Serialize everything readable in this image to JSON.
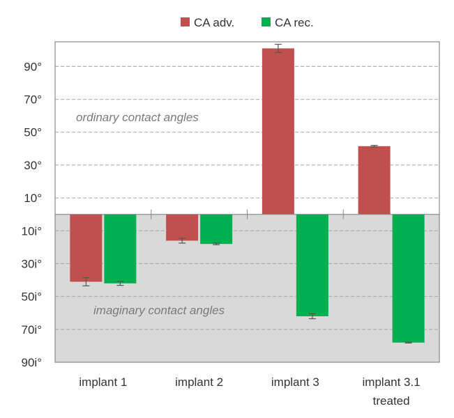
{
  "chart_data": {
    "type": "bar",
    "categories": [
      {
        "lines": [
          "implant 1"
        ]
      },
      {
        "lines": [
          "implant 2"
        ]
      },
      {
        "lines": [
          "implant 3"
        ]
      },
      {
        "lines": [
          "implant 3.1",
          "treated"
        ]
      }
    ],
    "series": [
      {
        "name": "CA adv.",
        "color": "#c0504d",
        "values": [
          -41,
          -16,
          101,
          41.5
        ],
        "errors": [
          2.5,
          1.5,
          2.5,
          0.5
        ]
      },
      {
        "name": "CA rec.",
        "color": "#00b050",
        "values": [
          -42,
          -18,
          -62,
          -78
        ],
        "errors": [
          1.2,
          0.5,
          1.5,
          0.3
        ]
      }
    ],
    "ylim": [
      -90,
      105
    ],
    "y_ticks": [
      {
        "value": 90,
        "label": "90°"
      },
      {
        "value": 70,
        "label": "70°"
      },
      {
        "value": 50,
        "label": "50°"
      },
      {
        "value": 30,
        "label": "30°"
      },
      {
        "value": 10,
        "label": "10°"
      },
      {
        "value": -10,
        "label": "10i°"
      },
      {
        "value": -30,
        "label": "30i°"
      },
      {
        "value": -50,
        "label": "50i°"
      },
      {
        "value": -70,
        "label": "70i°"
      },
      {
        "value": -90,
        "label": "90i°"
      }
    ],
    "grid": true,
    "legend": "top-center",
    "annotations": {
      "ordinary": "ordinary contact angles",
      "imaginary": "imaginary contact angles"
    },
    "colors": {
      "negative_region": "#d9d9d9",
      "gridline": "#a6a6a6",
      "axis": "#888888"
    }
  }
}
